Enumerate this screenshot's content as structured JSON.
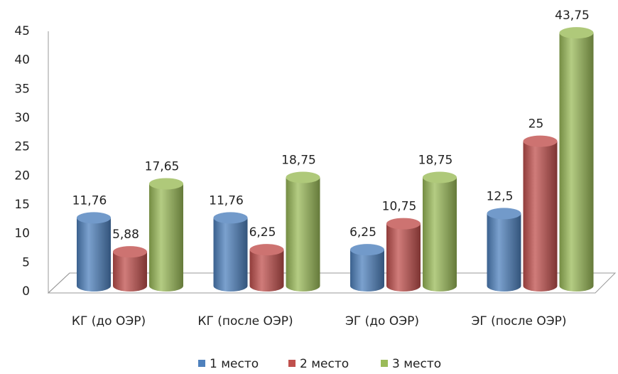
{
  "chart_data": {
    "type": "bar3d",
    "categories": [
      "КГ (до ОЭР)",
      "КГ (после ОЭР)",
      "ЭГ (до ОЭР)",
      "ЭГ (после ОЭР)"
    ],
    "series": [
      {
        "name": "1 место",
        "color": "#4f81bd",
        "values": [
          11.76,
          11.76,
          6.25,
          12.5
        ],
        "value_labels": [
          "11,76",
          "11,76",
          "6,25",
          "12,5"
        ]
      },
      {
        "name": "2 место",
        "color": "#c0504d",
        "values": [
          5.88,
          6.25,
          10.75,
          25
        ],
        "value_labels": [
          "5,88",
          "6,25",
          "10,75",
          "25"
        ]
      },
      {
        "name": "3 место",
        "color": "#9bbb59",
        "values": [
          17.65,
          18.75,
          18.75,
          43.75
        ],
        "value_labels": [
          "17,65",
          "18,75",
          "18,75",
          "43,75"
        ]
      }
    ],
    "ylim": [
      0,
      45
    ],
    "yticks": [
      0,
      5,
      10,
      15,
      20,
      25,
      30,
      35,
      40,
      45
    ],
    "legend": "bottom"
  }
}
